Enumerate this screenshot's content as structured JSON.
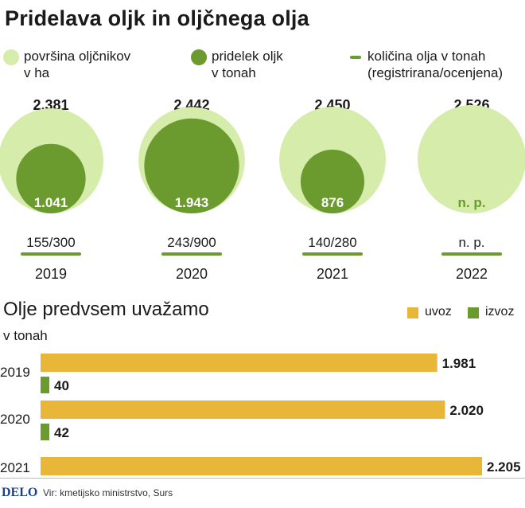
{
  "title": "Pridelava oljk in oljčnega olja",
  "legend": {
    "area_line1": "površina oljčnikov",
    "area_line2": "v ha",
    "harvest_line1": "pridelek oljk",
    "harvest_line2": "v tonah",
    "oil_line1": "količina olja v tonah",
    "oil_line2": "(registrirana/ocenjena)"
  },
  "colors": {
    "area": "#d5ecaa",
    "harvest": "#6b9a2e",
    "import": "#e8b739",
    "export": "#6b9a2e",
    "oil_line": "#6b9a2e"
  },
  "chart_data": [
    {
      "type": "bubble",
      "x_categories": [
        "2019",
        "2020",
        "2021",
        "2022"
      ],
      "series": [
        {
          "name": "površina oljčnikov v ha",
          "values": [
            2381,
            2442,
            2450,
            2526
          ],
          "labels": [
            "2.381",
            "2.442",
            "2.450",
            "2.526"
          ]
        },
        {
          "name": "pridelek oljk v tonah",
          "values": [
            1041,
            1943,
            876,
            null
          ],
          "labels": [
            "1.041",
            "1.943",
            "876",
            "n. p."
          ]
        },
        {
          "name": "količina olja v tonah (registrirana/ocenjena)",
          "labels": [
            "155/300",
            "243/900",
            "140/280",
            "n. p."
          ]
        }
      ]
    },
    {
      "type": "bar",
      "orientation": "horizontal",
      "title": "Olje predvsem uvažamo",
      "subtitle": "v tonah",
      "categories": [
        "2019",
        "2020",
        "2021"
      ],
      "series": [
        {
          "name": "uvoz",
          "values": [
            1981,
            2020,
            2205
          ],
          "labels": [
            "1.981",
            "2.020",
            "2.205"
          ]
        },
        {
          "name": "izvoz",
          "values": [
            40,
            42,
            null
          ],
          "labels": [
            "40",
            "42",
            ""
          ]
        }
      ]
    }
  ],
  "footer": {
    "logo": "DELO",
    "source": "Vir: kmetijsko ministrstvo, Surs"
  }
}
